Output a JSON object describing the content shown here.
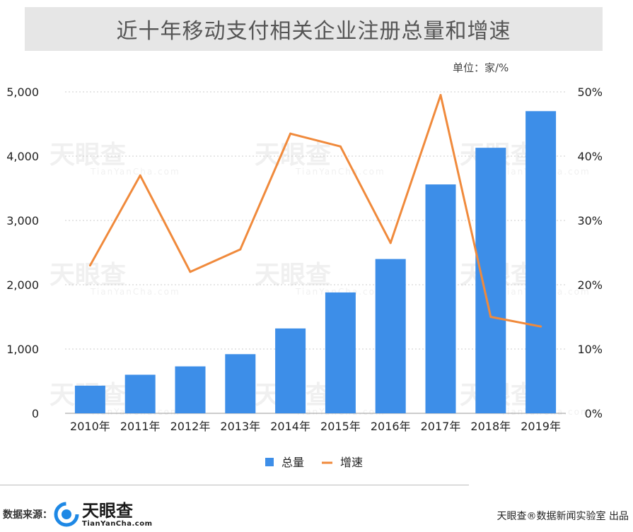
{
  "title": "近十年移动支付相关企业注册总量和增速",
  "unit_label": "单位：家/%",
  "footer": {
    "source_label": "数据来源：",
    "logo_name": "天眼查",
    "logo_url": "TianYanCha.com",
    "publisher": "天眼查®数据新闻实验室 出品"
  },
  "watermark": {
    "name": "天眼查",
    "url": "TianYanCha.com"
  },
  "colors": {
    "bar": "#3d8ee8",
    "line": "#f08a3c",
    "grid": "#cccccc"
  },
  "chart_data": {
    "type": "bar",
    "categories": [
      "2010年",
      "2011年",
      "2012年",
      "2013年",
      "2014年",
      "2015年",
      "2016年",
      "2017年",
      "2018年",
      "2019年"
    ],
    "series": [
      {
        "name": "总量",
        "type": "bar",
        "axis": "left",
        "values": [
          430,
          600,
          730,
          920,
          1320,
          1880,
          2400,
          3560,
          4130,
          4700
        ]
      },
      {
        "name": "增速",
        "type": "line",
        "axis": "right",
        "values": [
          23,
          37,
          22,
          25.5,
          43.5,
          41.5,
          26.5,
          49.5,
          15,
          13.5
        ]
      }
    ],
    "y_left": {
      "range": [
        0,
        5000
      ],
      "ticks": [
        "0",
        "1,000",
        "2,000",
        "3,000",
        "4,000",
        "5,000"
      ]
    },
    "y_right": {
      "range": [
        0,
        50
      ],
      "ticks": [
        "0%",
        "10%",
        "20%",
        "30%",
        "40%",
        "50%"
      ]
    },
    "grid": true,
    "legend_position": "bottom"
  }
}
